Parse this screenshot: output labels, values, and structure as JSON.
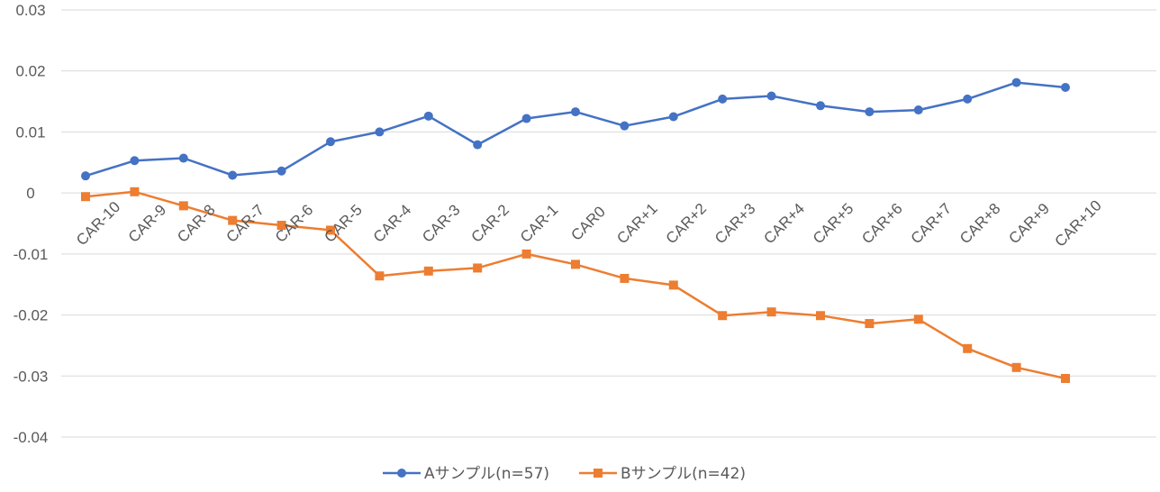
{
  "chart_data": {
    "type": "line",
    "title": "",
    "xlabel": "",
    "ylabel": "",
    "categories": [
      "CAR-10",
      "CAR-9",
      "CAR-8",
      "CAR-7",
      "CAR-6",
      "CAR-5",
      "CAR-4",
      "CAR-3",
      "CAR-2",
      "CAR-1",
      "CAR0",
      "CAR+1",
      "CAR+2",
      "CAR+3",
      "CAR+4",
      "CAR+5",
      "CAR+6",
      "CAR+7",
      "CAR+8",
      "CAR+9",
      "CAR+10"
    ],
    "ylim": [
      -0.04,
      0.03
    ],
    "yticks": [
      "0.03",
      "0.02",
      "0.01",
      "0",
      "-0.01",
      "-0.02",
      "-0.03",
      "-0.04"
    ],
    "yticks_values": [
      0.03,
      0.02,
      0.01,
      0,
      -0.01,
      -0.02,
      -0.03,
      -0.04
    ],
    "grid": true,
    "legend_position": "bottom",
    "series": [
      {
        "name": "Aサンプル(n=57)",
        "color": "#4472C4",
        "marker": "circle",
        "values": [
          0.0028,
          0.0053,
          0.0057,
          0.0029,
          0.0036,
          0.0084,
          0.01,
          0.0126,
          0.0079,
          0.0122,
          0.0133,
          0.011,
          0.0125,
          0.0154,
          0.0159,
          0.0143,
          0.0133,
          0.0136,
          0.0154,
          0.0181,
          0.0173
        ]
      },
      {
        "name": "Bサンプル(n=42)",
        "color": "#ED7D31",
        "marker": "square",
        "values": [
          -0.0006,
          0.0002,
          -0.0021,
          -0.0045,
          -0.0053,
          -0.0061,
          -0.0136,
          -0.0128,
          -0.0123,
          -0.01,
          -0.0117,
          -0.014,
          -0.0151,
          -0.0201,
          -0.0195,
          -0.0201,
          -0.0214,
          -0.0207,
          -0.0255,
          -0.0286,
          -0.0304
        ]
      }
    ]
  }
}
